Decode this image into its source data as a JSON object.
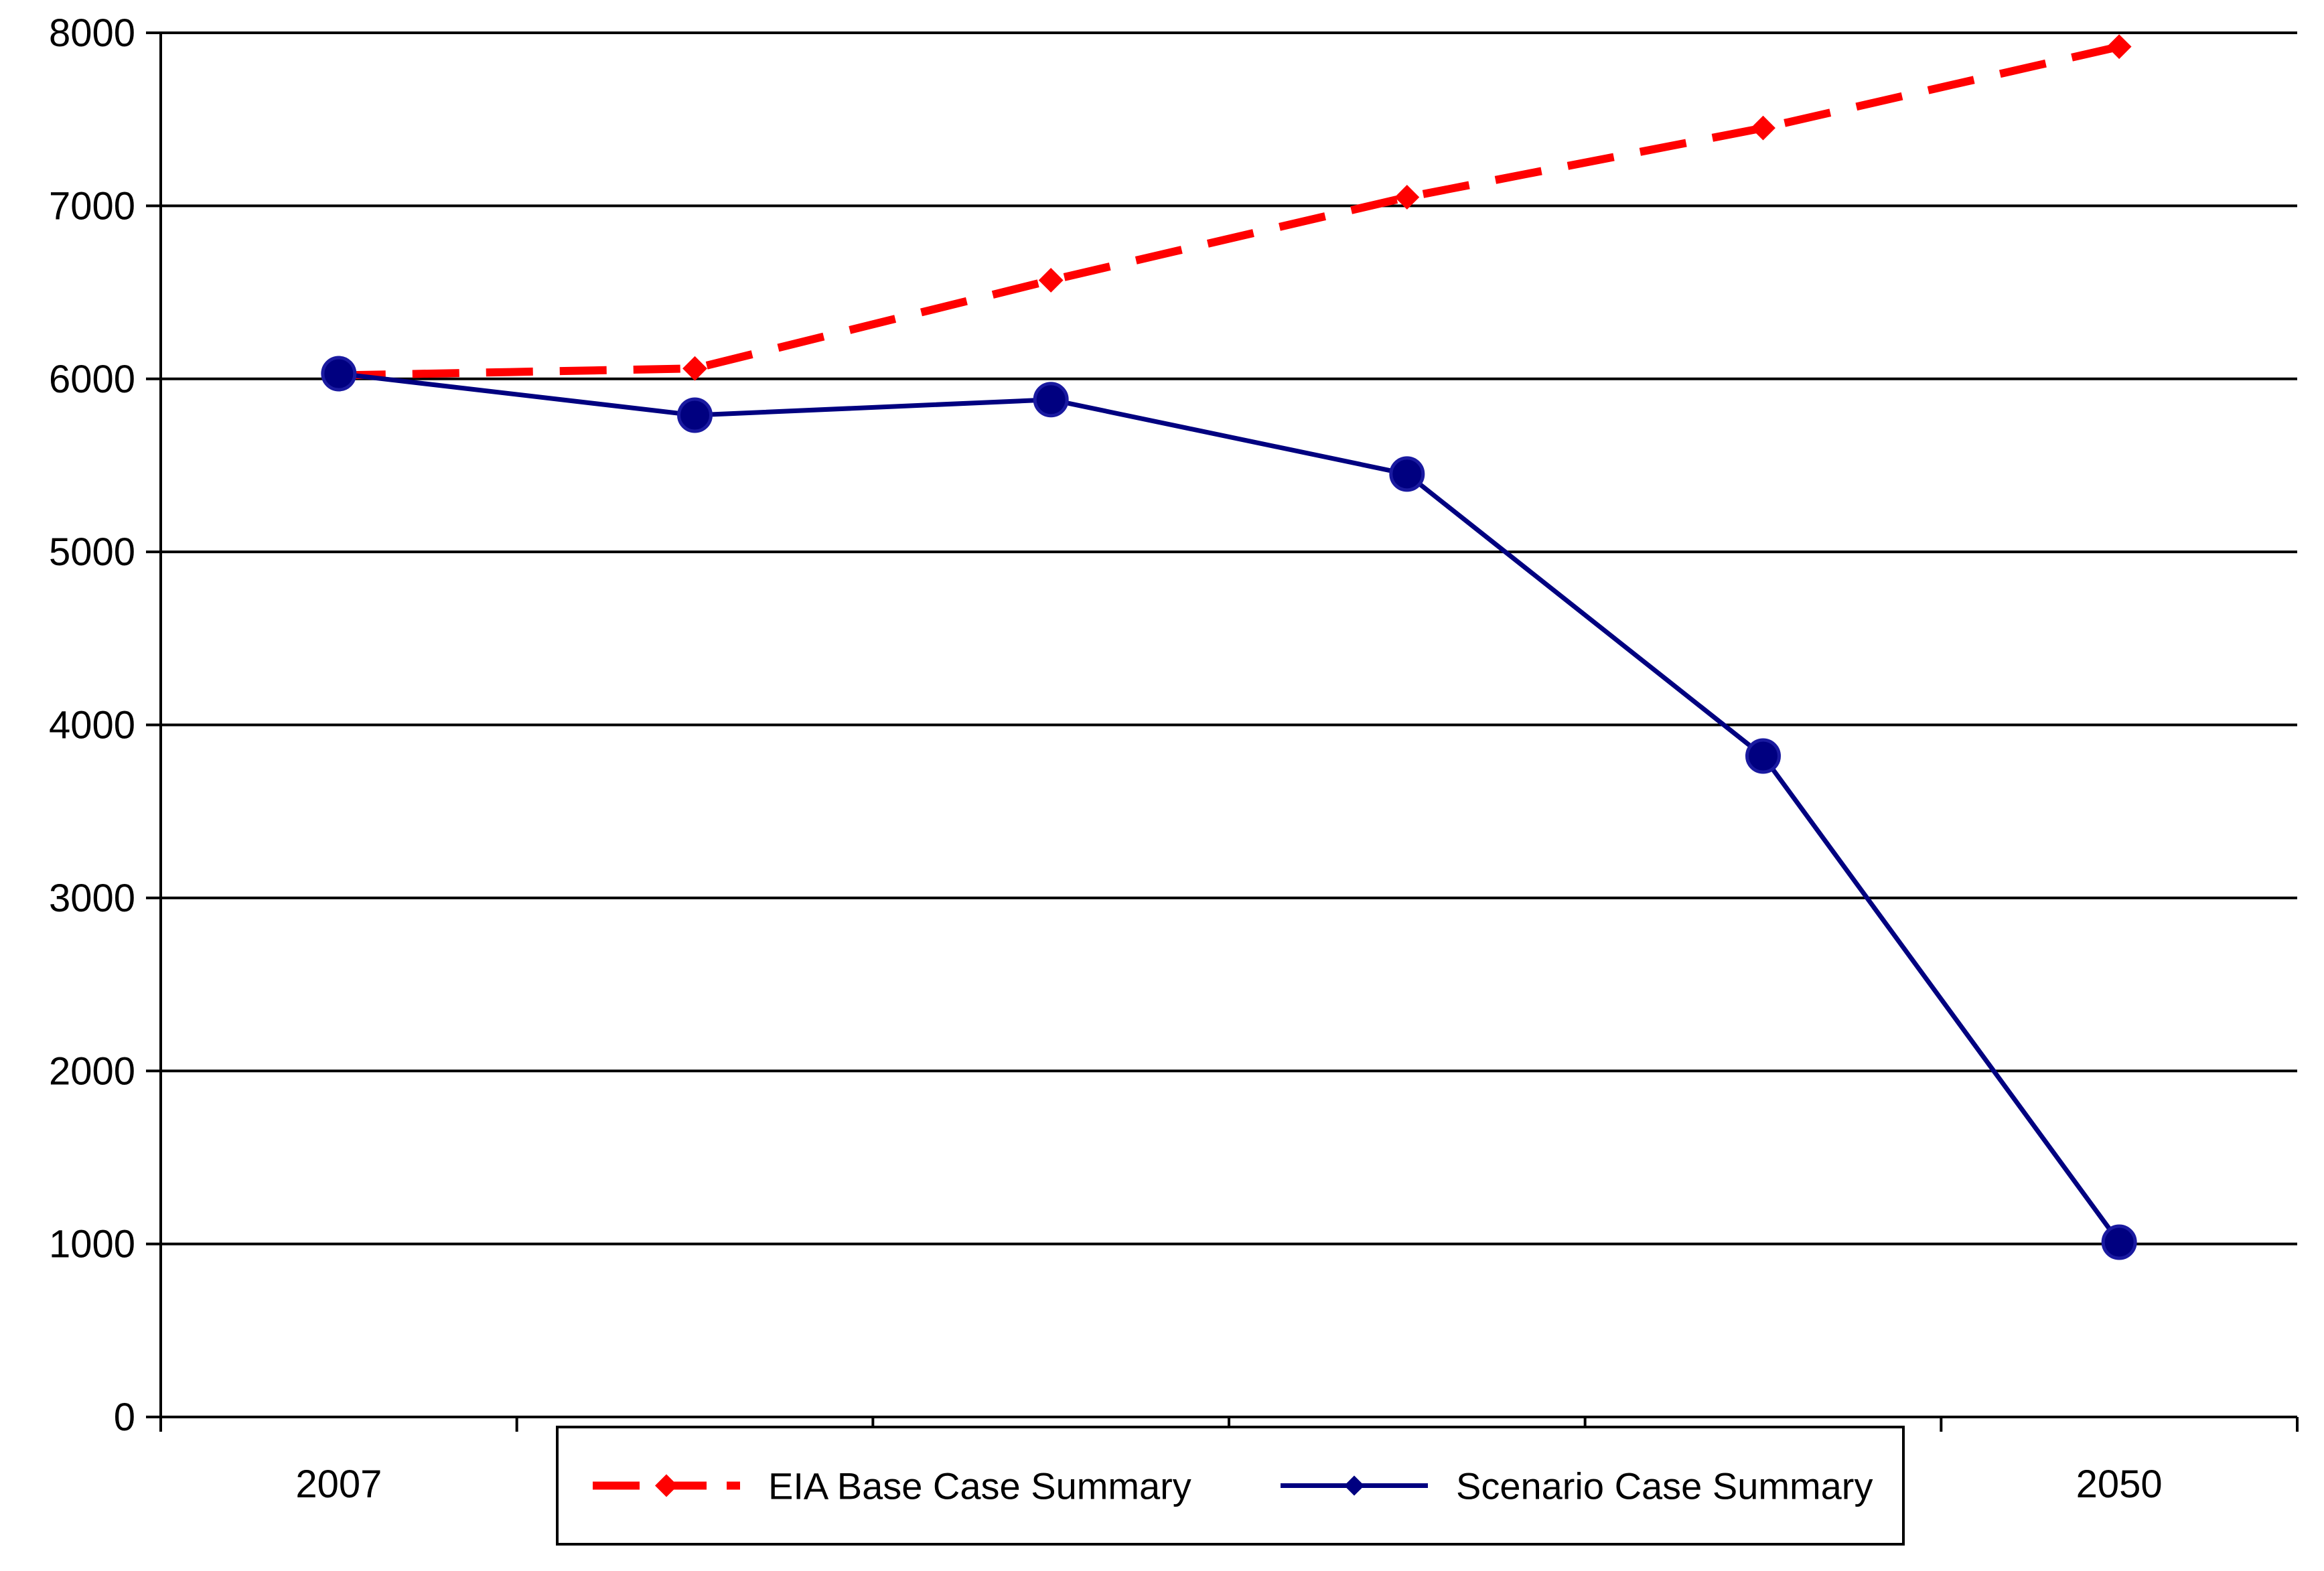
{
  "chart_data": {
    "type": "line",
    "title": "",
    "xlabel": "",
    "ylabel": "",
    "x_tick_labels": [
      "2007",
      "",
      "",
      "",
      "",
      "2050"
    ],
    "y_ticks": [
      0,
      1000,
      2000,
      3000,
      4000,
      5000,
      6000,
      7000,
      8000
    ],
    "ylim": [
      0,
      8000
    ],
    "grid": "horizontal",
    "legend_position": "bottom-center",
    "series": [
      {
        "name": "EIA Base Case Summary",
        "color": "#ff0000",
        "style": "dashed",
        "marker": "diamond",
        "values": [
          6020,
          6060,
          6570,
          7050,
          7450,
          7920
        ]
      },
      {
        "name": "Scenario Case Summary",
        "color": "#000080",
        "style": "solid",
        "marker": "circle",
        "values": [
          6030,
          5790,
          5880,
          5450,
          3820,
          1010
        ]
      }
    ]
  }
}
